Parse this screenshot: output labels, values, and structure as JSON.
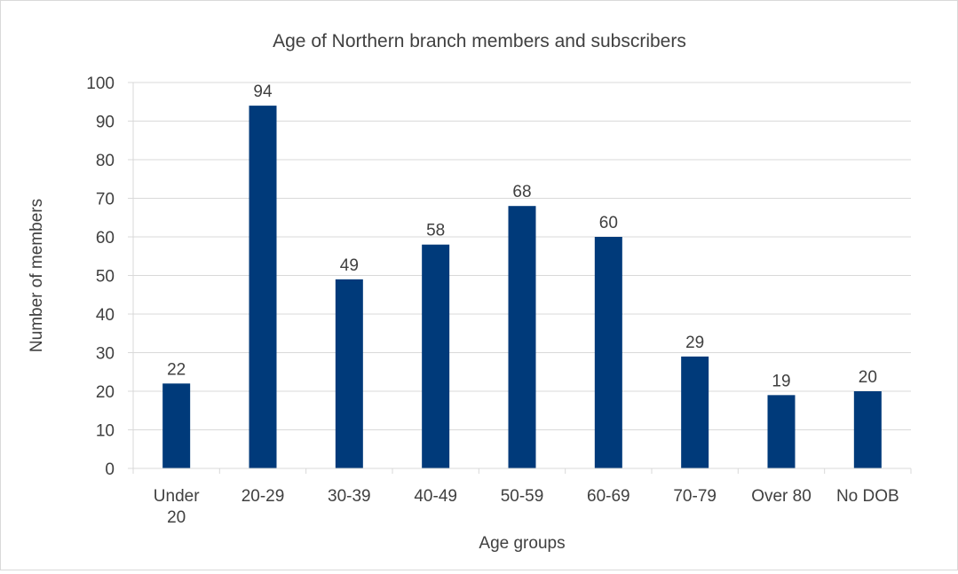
{
  "chart_data": {
    "type": "bar",
    "title": "Age of Northern branch members and subscribers",
    "xlabel": "Age groups",
    "ylabel": "Number of members",
    "categories": [
      [
        "Under",
        "20"
      ],
      [
        "20-29"
      ],
      [
        "30-39"
      ],
      [
        "40-49"
      ],
      [
        "50-59"
      ],
      [
        "60-69"
      ],
      [
        "70-79"
      ],
      [
        "Over 80"
      ],
      [
        "No DOB"
      ]
    ],
    "values": [
      22,
      94,
      49,
      58,
      68,
      60,
      29,
      19,
      20
    ],
    "ylim": [
      0,
      100
    ],
    "yticks": [
      0,
      10,
      20,
      30,
      40,
      50,
      60,
      70,
      80,
      90,
      100
    ],
    "grid": true,
    "legend": "none",
    "bar_color": "#003a7a",
    "grid_color": "#d9d9d9"
  }
}
